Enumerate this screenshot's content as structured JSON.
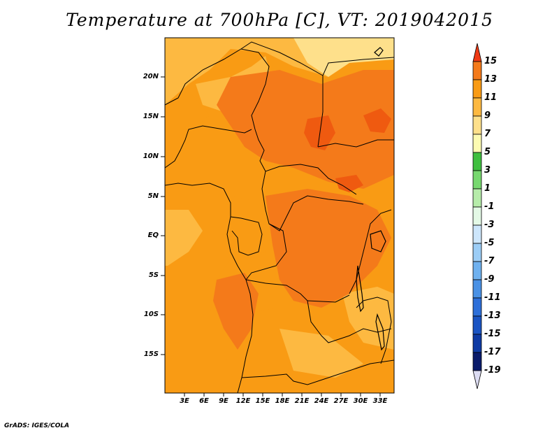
{
  "title": "Temperature at 700hPa [C], VT: 2019042015",
  "credit": "GrADS: IGES/COLA",
  "map": {
    "lat_labels": [
      "20N",
      "15N",
      "10N",
      "5N",
      "EQ",
      "5S",
      "10S",
      "15S"
    ],
    "lon_labels": [
      "3E",
      "6E",
      "9E",
      "12E",
      "15E",
      "18E",
      "21E",
      "24E",
      "27E",
      "30E",
      "33E"
    ],
    "field_colors": {
      "c5_7": "#fee08b",
      "c7_9": "#fdb941",
      "c9_11": "#f99b14",
      "c11_13": "#f47a1a",
      "c13_15": "#ef5a10"
    }
  },
  "legend": {
    "labels": [
      "15",
      "13",
      "11",
      "9",
      "7",
      "5",
      "3",
      "1",
      "-1",
      "-3",
      "-5",
      "-7",
      "-9",
      "-11",
      "-13",
      "-15",
      "-17",
      "-19"
    ],
    "colors": [
      "#ef3a15",
      "#f47a1a",
      "#f99b14",
      "#fdb941",
      "#fee08b",
      "#fdfbb2",
      "#3fbf3f",
      "#77d86f",
      "#b6ecaa",
      "#e4f9e6",
      "#cde6fb",
      "#9ccdf6",
      "#6fb1ef",
      "#4a91e5",
      "#2d6fd9",
      "#1a54c3",
      "#0e3aa4",
      "#0a1b6b",
      "#dcdcf2"
    ]
  }
}
